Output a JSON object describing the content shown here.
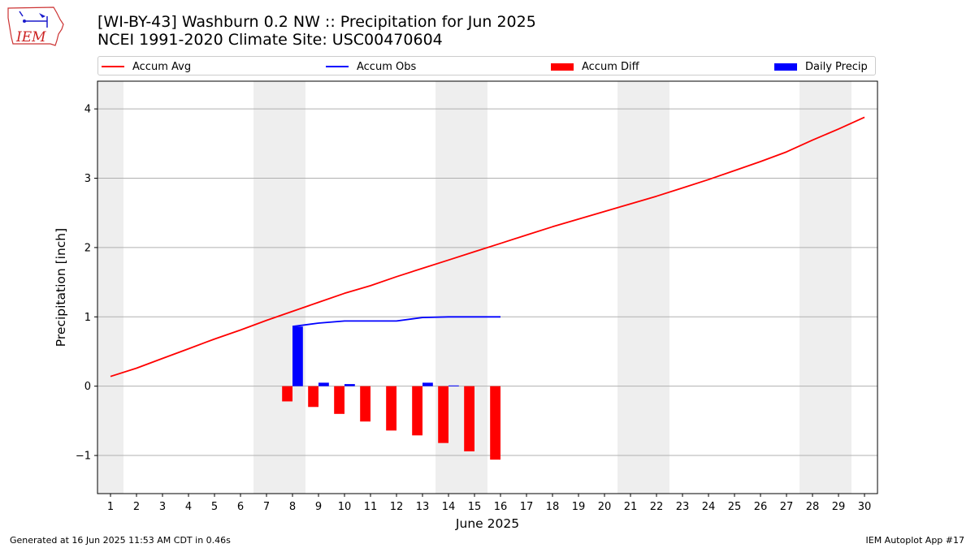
{
  "header": {
    "title_line1": "[WI-BY-43] Washburn 0.2 NW :: Precipitation for Jun 2025",
    "title_line2": "NCEI 1991-2020 Climate Site: USC00470604",
    "logo_text": "IEM"
  },
  "footer": {
    "left": "Generated at 16 Jun 2025 11:53 AM CDT in 0.46s",
    "right": "IEM Autoplot App #17"
  },
  "legend": {
    "placement": "top",
    "items": [
      {
        "label": "Accum Avg",
        "kind": "line",
        "color": "#ff0000"
      },
      {
        "label": "Accum Obs",
        "kind": "line",
        "color": "#0000ff"
      },
      {
        "label": "Accum Diff",
        "kind": "patch",
        "color": "#ff0000"
      },
      {
        "label": "Daily Precip",
        "kind": "patch",
        "color": "#0000ff"
      }
    ]
  },
  "chart_data": {
    "type": "line",
    "xlabel": "June 2025",
    "ylabel": "Precipitation [inch]",
    "xlim": [
      0.5,
      30.5
    ],
    "ylim": [
      -1.55,
      4.4
    ],
    "x_ticks": [
      1,
      2,
      3,
      4,
      5,
      6,
      7,
      8,
      9,
      10,
      11,
      12,
      13,
      14,
      15,
      16,
      17,
      18,
      19,
      20,
      21,
      22,
      23,
      24,
      25,
      26,
      27,
      28,
      29,
      30
    ],
    "y_ticks": [
      -1,
      0,
      1,
      2,
      3,
      4
    ],
    "y_tick_labels": [
      "−1",
      "0",
      "1",
      "2",
      "3",
      "4"
    ],
    "grid": "horizontal",
    "weekend_shading": [
      [
        0.5,
        1.5
      ],
      [
        6.5,
        8.5
      ],
      [
        13.5,
        15.5
      ],
      [
        20.5,
        22.5
      ],
      [
        27.5,
        29.5
      ]
    ],
    "shading_color": "#eeeeee",
    "series": [
      {
        "name": "Accum Avg",
        "type": "line",
        "color": "#ff0000",
        "x": [
          1,
          2,
          3,
          4,
          5,
          6,
          7,
          8,
          9,
          10,
          11,
          12,
          13,
          14,
          15,
          16,
          17,
          18,
          19,
          20,
          21,
          22,
          23,
          24,
          25,
          26,
          27,
          28,
          29,
          30
        ],
        "values": [
          0.14,
          0.26,
          0.4,
          0.54,
          0.68,
          0.81,
          0.95,
          1.08,
          1.21,
          1.34,
          1.45,
          1.58,
          1.7,
          1.82,
          1.94,
          2.06,
          2.18,
          2.3,
          2.41,
          2.52,
          2.63,
          2.74,
          2.86,
          2.98,
          3.11,
          3.24,
          3.38,
          3.55,
          3.71,
          3.88
        ]
      },
      {
        "name": "Accum Obs",
        "type": "line",
        "color": "#0000ff",
        "x": [
          8,
          9,
          10,
          11,
          12,
          13,
          14,
          15,
          16
        ],
        "values": [
          0.86,
          0.91,
          0.94,
          0.94,
          0.94,
          0.99,
          1.0,
          1.0,
          1.0
        ]
      },
      {
        "name": "Accum Diff",
        "type": "bar",
        "color": "#ff0000",
        "offset": -0.2,
        "x": [
          8,
          9,
          10,
          11,
          12,
          13,
          14,
          15,
          16
        ],
        "values": [
          -0.22,
          -0.3,
          -0.4,
          -0.51,
          -0.64,
          -0.71,
          -0.82,
          -0.94,
          -1.06
        ]
      },
      {
        "name": "Daily Precip",
        "type": "bar",
        "color": "#0000ff",
        "offset": 0.2,
        "x": [
          8,
          9,
          10,
          11,
          12,
          13,
          14,
          15,
          16
        ],
        "values": [
          0.86,
          0.05,
          0.03,
          0.0,
          0.0,
          0.05,
          0.01,
          0.0,
          0.0
        ]
      }
    ]
  }
}
